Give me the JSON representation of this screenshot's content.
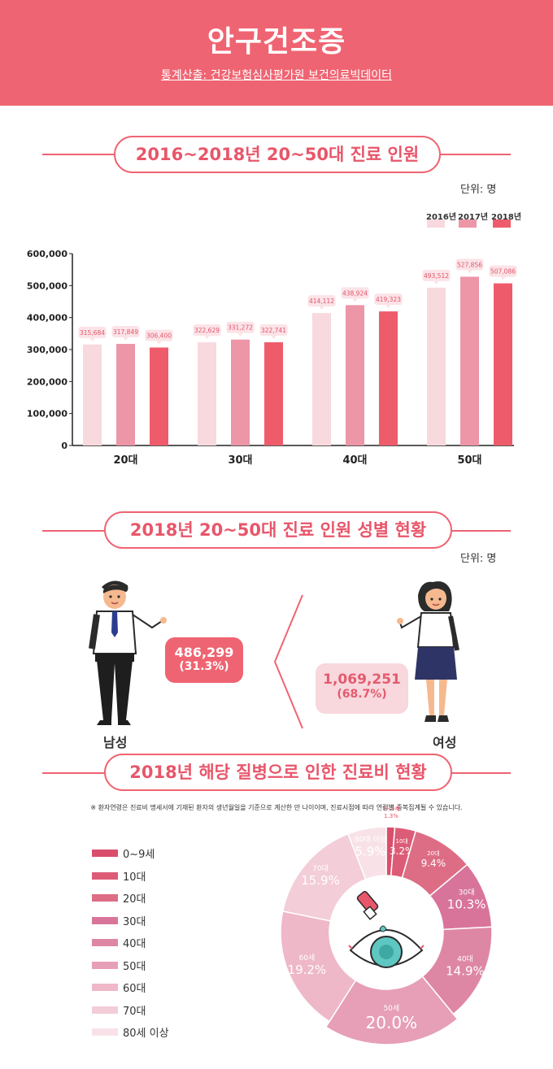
{
  "header": {
    "title": "안구건조증",
    "source": "통계산출: 건강보험심사평가원 보건의료빅데이터"
  },
  "section1": {
    "title": "2016~2018년 20~50대 진료 인원",
    "unit": "단위: 명"
  },
  "section2": {
    "title": "2018년 20~50대 진료 인원 성별 현황",
    "unit": "단위: 명",
    "male": {
      "label": "남성",
      "count": "486,299",
      "pct": "(31.3%)"
    },
    "female": {
      "label": "여성",
      "count": "1,069,251",
      "pct": "(68.7%)"
    }
  },
  "section3": {
    "title": "2018년 해당 질병으로 인한 진료비 현황",
    "note": "※ 환자연령은 진료비 명세서에 기재된 환자의 생년월일을 기준으로 계산한 만 나이이며, 진료시점에 따라 연령별 중복집계될 수 있습니다."
  },
  "colors": {
    "accent": "#ef6472",
    "y2016": "#f7d9de",
    "y2017": "#ec96a8",
    "y2018": "#ee5c6c"
  },
  "chart_data": [
    {
      "type": "bar",
      "title": "2016~2018년 20~50대 진료 인원",
      "categories": [
        "20대",
        "30대",
        "40대",
        "50대"
      ],
      "series": [
        {
          "name": "2016년",
          "values": [
            315684,
            322629,
            414112,
            493512
          ],
          "labels": [
            "315,684",
            "322,629",
            "414,112",
            "493,512"
          ]
        },
        {
          "name": "2017년",
          "values": [
            317849,
            331272,
            438924,
            527856
          ],
          "labels": [
            "317,849",
            "331,272",
            "438,924",
            "527,856"
          ]
        },
        {
          "name": "2018년",
          "values": [
            306400,
            322741,
            419323,
            507086
          ],
          "labels": [
            "306,400",
            "322,741",
            "419,323",
            "507,086"
          ]
        }
      ],
      "yticks": [
        "0",
        "100,000",
        "200,000",
        "300,000",
        "400,000",
        "500,000",
        "600,000"
      ],
      "ylim": [
        0,
        600000
      ],
      "legend": "top-right"
    },
    {
      "type": "pie",
      "title": "2018년 해당 질병으로 인한 진료비 현황",
      "categories": [
        "0~9세",
        "10대",
        "20대",
        "30대",
        "40대",
        "50세",
        "60세",
        "70대",
        "80대 이상"
      ],
      "values": [
        1.3,
        3.2,
        9.4,
        10.3,
        14.9,
        20.0,
        19.2,
        15.9,
        5.9
      ],
      "slice_labels": [
        "0~9세",
        "10대",
        "20대",
        "30대",
        "40대",
        "50세",
        "60세",
        "70대",
        "80대 이상"
      ],
      "pct_labels": [
        "1.3%",
        "3.2%",
        "9.4%",
        "10.3%",
        "14.9%",
        "20.0%",
        "19.2%",
        "15.9%",
        "5.9%"
      ],
      "legend_labels": [
        "0~9세",
        "10대",
        "20대",
        "30대",
        "40대",
        "50대",
        "60대",
        "70대",
        "80세 이상"
      ],
      "colors": [
        "#d94f6b",
        "#dc5c77",
        "#dd6d85",
        "#d8749a",
        "#de87a5",
        "#e69fb6",
        "#eeb8c8",
        "#f3cdd8",
        "#f8e2e8"
      ]
    }
  ]
}
